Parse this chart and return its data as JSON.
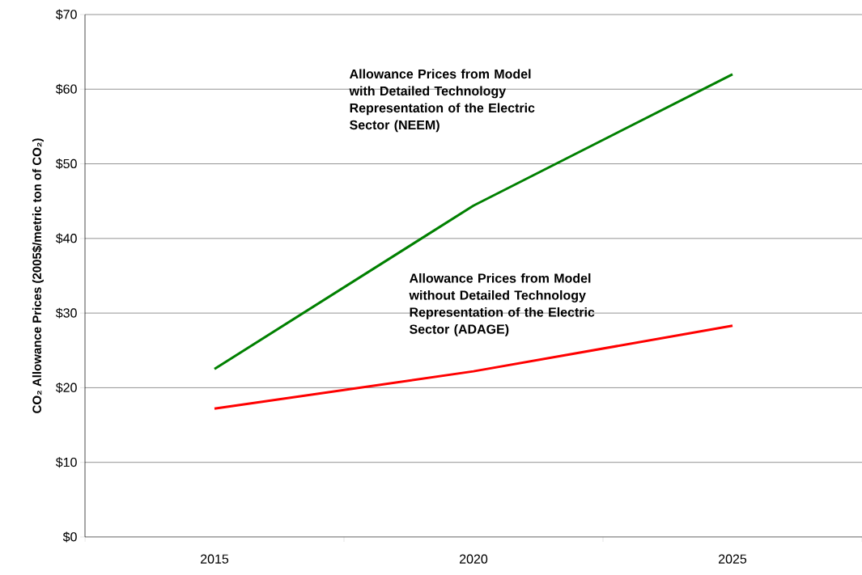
{
  "chart_data": {
    "type": "line",
    "ylabel": "CO₂ Allowance Prices (2005$/metric ton of CO₂)",
    "categories": [
      "2015",
      "2020",
      "2025"
    ],
    "series": [
      {
        "name": "Allowance Prices from Model with Detailed Technology Representation of the Electric Sector (NEEM)",
        "color": "#008000",
        "values": [
          22.5,
          44.4,
          62.0
        ]
      },
      {
        "name": "Allowance Prices from Model without Detailed Technology Representation of the Electric Sector (ADAGE)",
        "color": "#ff0000",
        "values": [
          17.2,
          22.2,
          28.3
        ]
      }
    ],
    "ylim": [
      0,
      70
    ],
    "yticks": [
      {
        "value": 0,
        "label": "$0"
      },
      {
        "value": 10,
        "label": "$10"
      },
      {
        "value": 20,
        "label": "$20"
      },
      {
        "value": 30,
        "label": "$30"
      },
      {
        "value": 40,
        "label": "$40"
      },
      {
        "value": 50,
        "label": "$50"
      },
      {
        "value": 60,
        "label": "$60"
      },
      {
        "value": 70,
        "label": "$70"
      }
    ],
    "grid": "y",
    "legend": false,
    "marker": "none",
    "line_style": "solid"
  }
}
